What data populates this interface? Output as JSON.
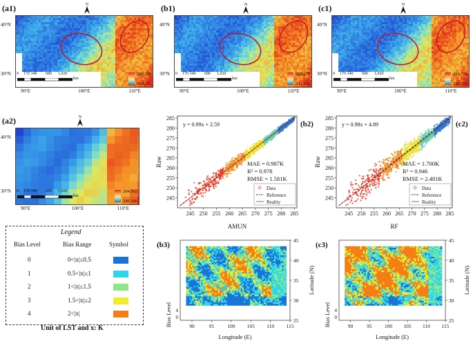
{
  "map_panels": [
    {
      "tag": "(a1)",
      "max": "285.258",
      "min": "240.221"
    },
    {
      "tag": "(b1)",
      "max": "285.079",
      "min": "241.206"
    },
    {
      "tag": "(c1)",
      "max": "285.724",
      "min": "242.538"
    },
    {
      "tag": "(a2)",
      "max": "284.502",
      "min": "246.366"
    }
  ],
  "map_axes": {
    "lat_40": "40°N",
    "lat_30": "30°N",
    "lon_90": "90°E",
    "lon_100": "100°E",
    "lon_110": "110°E",
    "north": "N",
    "scale_ticks": [
      "0",
      "170 340",
      "680",
      "1,020"
    ],
    "scale_unit": "km"
  },
  "scatter_b2": {
    "tag": "(b2)",
    "equation": "y = 0.99x + 2.59",
    "mae": "MAE = 0.987K",
    "r2": "R² = 0.978",
    "rmse": "RMSE = 1.581K"
  },
  "scatter_c2": {
    "tag": "(c2)",
    "equation": "y = 0.98x + 4.89",
    "mae": "MAE = 1.700K",
    "r2": "R² = 0.946",
    "rmse": "RMSE = 2.481K"
  },
  "scatter_legend": {
    "data": "Data",
    "reference": "Reference",
    "reality": "Reality"
  },
  "bias_panels": [
    {
      "tag": "(b3)"
    },
    {
      "tag": "(c3)"
    }
  ],
  "legend": {
    "title": "Legend",
    "col_level": "Bias Level",
    "col_range": "Bias Range",
    "col_symbol": "Symbol",
    "rows": [
      {
        "level": "0",
        "range": "0<|x|≤0.5",
        "color": "#1a73d6"
      },
      {
        "level": "1",
        "range": "0.5<|x|≤1",
        "color": "#2fd6ea"
      },
      {
        "level": "2",
        "range": "1<|x|≤1.5",
        "color": "#8ee889"
      },
      {
        "level": "3",
        "range": "1.5<|x|≤2",
        "color": "#f0ec2c"
      },
      {
        "level": "4",
        "range": "2<|x|",
        "color": "#f57e14"
      }
    ],
    "unit": "Unit of LST and x: K"
  },
  "chart_data": [
    {
      "type": "scatter",
      "title": "(b2)",
      "xlabel": "AMUN",
      "ylabel": "Raw",
      "xlim": [
        240,
        286
      ],
      "ylim": [
        240,
        286
      ],
      "xticks": [
        245,
        250,
        255,
        260,
        265,
        270,
        275,
        280,
        285
      ],
      "yticks": [
        245,
        250,
        255,
        260,
        265,
        270,
        275,
        280,
        285
      ],
      "fit": {
        "slope": 0.99,
        "intercept": 2.59
      },
      "metrics": {
        "MAE_K": 0.987,
        "R2": 0.978,
        "RMSE_K": 1.581
      }
    },
    {
      "type": "scatter",
      "title": "(c2)",
      "xlabel": "RF",
      "ylabel": "Raw",
      "xlim": [
        240,
        286
      ],
      "ylim": [
        240,
        286
      ],
      "xticks": [
        245,
        250,
        255,
        260,
        265,
        270,
        275,
        280,
        285
      ],
      "yticks": [
        245,
        250,
        255,
        260,
        265,
        270,
        275,
        280,
        285
      ],
      "fit": {
        "slope": 0.98,
        "intercept": 4.89
      },
      "metrics": {
        "MAE_K": 1.7,
        "R2": 0.946,
        "RMSE_K": 2.481
      }
    },
    {
      "type": "heatmap",
      "title": "(b3)",
      "xlabel": "Longitude (E)",
      "ylabel_left": "Bias Level",
      "ylabel_right": "Latitude (N)",
      "xlim": [
        87,
        115
      ],
      "xticks": [
        90,
        95,
        100,
        105,
        110,
        115
      ],
      "ylim": [
        25,
        45
      ],
      "yticks": [
        25,
        30,
        35,
        40,
        45
      ],
      "bias_ticks": [
        "4",
        "0"
      ]
    },
    {
      "type": "heatmap",
      "title": "(c3)",
      "xlabel": "Longitude (E)",
      "ylabel_left": "Bias Level",
      "ylabel_right": "Latitude (N)",
      "xlim": [
        87,
        115
      ],
      "xticks": [
        90,
        95,
        100,
        105,
        110,
        115
      ],
      "ylim": [
        25,
        45
      ],
      "yticks": [
        25,
        30,
        35,
        40,
        45
      ],
      "bias_ticks": [
        "4",
        "0"
      ]
    }
  ]
}
